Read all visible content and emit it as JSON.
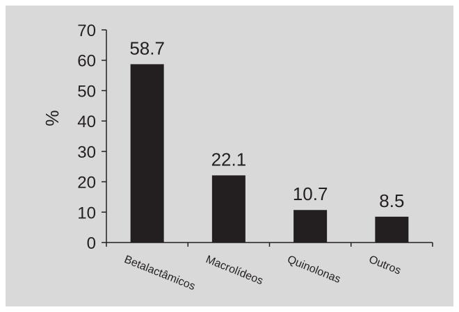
{
  "chart_data": {
    "type": "bar",
    "categories": [
      "Betalactâmicos",
      "Macrolídeos",
      "Quinolonas",
      "Outros"
    ],
    "values": [
      58.7,
      22.1,
      10.7,
      8.5
    ],
    "data_labels": [
      "58.7",
      "22.1",
      "10.7",
      "8.5"
    ],
    "title": "",
    "xlabel": "",
    "ylabel": "%",
    "ylim": [
      0,
      70
    ],
    "yticks": [
      0,
      10,
      20,
      30,
      40,
      50,
      60,
      70
    ],
    "grid": false,
    "legend": "none",
    "colors": {
      "bar": "#231f20",
      "background": "#d9d9d9",
      "axis": "#231f20"
    }
  }
}
